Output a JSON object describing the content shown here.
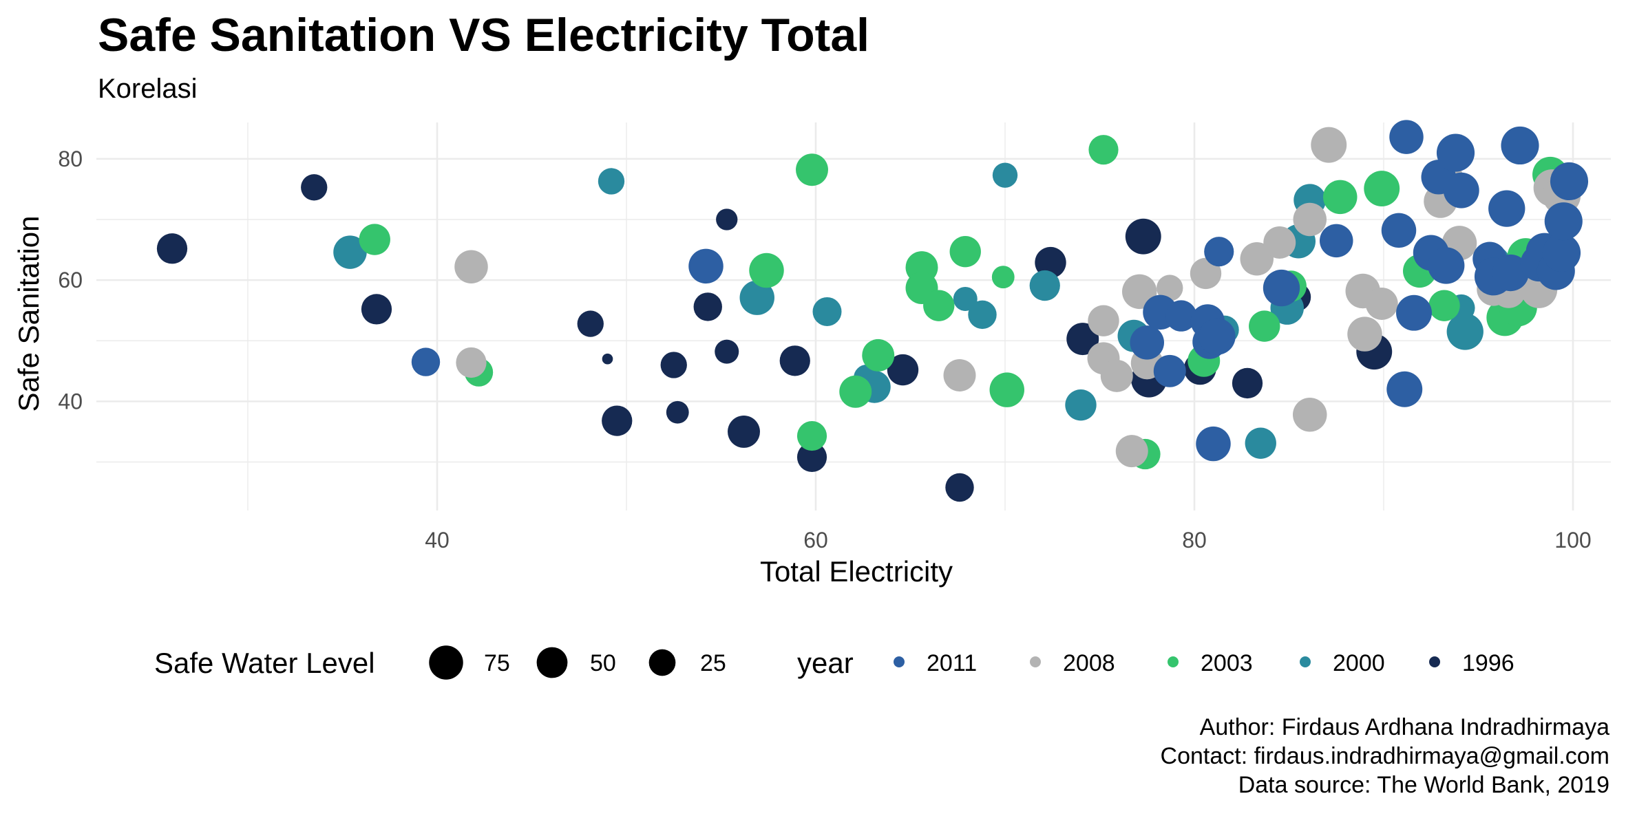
{
  "chart_data": {
    "type": "scatter",
    "title": "Safe Sanitation VS Electricity Total",
    "subtitle": "Korelasi",
    "xlabel": "Total Electricity",
    "ylabel": "Safe Sanitation",
    "xlim": [
      22,
      102
    ],
    "ylim": [
      22,
      86
    ],
    "x_ticks": [
      40,
      60,
      80,
      100
    ],
    "y_ticks": [
      40,
      60,
      80
    ],
    "grid": true,
    "legend_position": "bottom",
    "size_legend": {
      "title": "Safe Water Level",
      "values": [
        75,
        50,
        25
      ]
    },
    "color_legend": {
      "title": "year",
      "entries": [
        {
          "label": "2011",
          "color": "#2d5fa3"
        },
        {
          "label": "2008",
          "color": "#b3b3b3"
        },
        {
          "label": "2003",
          "color": "#35c46d"
        },
        {
          "label": "2000",
          "color": "#2a8a9e"
        },
        {
          "label": "1996",
          "color": "#162a52"
        }
      ]
    },
    "caption": [
      "Author: Firdaus Ardhana Indradhirmaya",
      "Contact: firdaus.indradhirmaya@gmail.com",
      "Data source: The World Bank, 2019"
    ],
    "series": [
      {
        "name": "1996",
        "color": "#162a52",
        "points": [
          {
            "x": 26,
            "y": 65.2,
            "s": 40
          },
          {
            "x": 33.5,
            "y": 75.3,
            "s": 30
          },
          {
            "x": 36.8,
            "y": 55.2,
            "s": 40
          },
          {
            "x": 48.1,
            "y": 52.8,
            "s": 30
          },
          {
            "x": 49,
            "y": 47,
            "s": 5
          },
          {
            "x": 49.5,
            "y": 36.8,
            "s": 40
          },
          {
            "x": 52.5,
            "y": 46,
            "s": 30
          },
          {
            "x": 52.7,
            "y": 38.2,
            "s": 22
          },
          {
            "x": 54.3,
            "y": 55.6,
            "s": 35
          },
          {
            "x": 55.3,
            "y": 70,
            "s": 20
          },
          {
            "x": 55.3,
            "y": 48.2,
            "s": 25
          },
          {
            "x": 56.2,
            "y": 35,
            "s": 45
          },
          {
            "x": 58.9,
            "y": 46.7,
            "s": 40
          },
          {
            "x": 59.8,
            "y": 30.8,
            "s": 38
          },
          {
            "x": 64.6,
            "y": 45.2,
            "s": 42
          },
          {
            "x": 67.6,
            "y": 25.8,
            "s": 35
          },
          {
            "x": 72.4,
            "y": 62.9,
            "s": 42
          },
          {
            "x": 74.1,
            "y": 50.3,
            "s": 45
          },
          {
            "x": 77.3,
            "y": 67.2,
            "s": 55
          },
          {
            "x": 77.6,
            "y": 43.6,
            "s": 55
          },
          {
            "x": 80.3,
            "y": 45.4,
            "s": 45
          },
          {
            "x": 82.8,
            "y": 43,
            "s": 40
          },
          {
            "x": 85.4,
            "y": 57.2,
            "s": 35
          },
          {
            "x": 89.5,
            "y": 48.2,
            "s": 55
          }
        ]
      },
      {
        "name": "2000",
        "color": "#2a8a9e",
        "points": [
          {
            "x": 35.4,
            "y": 64.6,
            "s": 48
          },
          {
            "x": 49.2,
            "y": 76.3,
            "s": 30
          },
          {
            "x": 56.9,
            "y": 57.1,
            "s": 52
          },
          {
            "x": 60.6,
            "y": 54.8,
            "s": 36
          },
          {
            "x": 62.7,
            "y": 43.9,
            "s": 30
          },
          {
            "x": 63.1,
            "y": 42.4,
            "s": 45
          },
          {
            "x": 67.9,
            "y": 56.9,
            "s": 25
          },
          {
            "x": 68.8,
            "y": 54.3,
            "s": 35
          },
          {
            "x": 70,
            "y": 77.3,
            "s": 27
          },
          {
            "x": 72.1,
            "y": 59.1,
            "s": 40
          },
          {
            "x": 74,
            "y": 39.4,
            "s": 42
          },
          {
            "x": 76.8,
            "y": 50.8,
            "s": 45
          },
          {
            "x": 81.6,
            "y": 51.8,
            "s": 35
          },
          {
            "x": 83.5,
            "y": 33.1,
            "s": 42
          },
          {
            "x": 84.9,
            "y": 55.4,
            "s": 48
          },
          {
            "x": 85.5,
            "y": 66.4,
            "s": 50
          },
          {
            "x": 86.1,
            "y": 73.2,
            "s": 45
          },
          {
            "x": 94.1,
            "y": 55.4,
            "s": 32
          },
          {
            "x": 94.3,
            "y": 51.5,
            "s": 58
          },
          {
            "x": 95.8,
            "y": 62.9,
            "s": 48
          }
        ]
      },
      {
        "name": "2003",
        "color": "#35c46d",
        "points": [
          {
            "x": 36.7,
            "y": 66.7,
            "s": 42
          },
          {
            "x": 42.2,
            "y": 44.8,
            "s": 35
          },
          {
            "x": 57.4,
            "y": 61.6,
            "s": 52
          },
          {
            "x": 59.8,
            "y": 78.2,
            "s": 45
          },
          {
            "x": 59.8,
            "y": 34.3,
            "s": 38
          },
          {
            "x": 62.1,
            "y": 41.6,
            "s": 45
          },
          {
            "x": 63.3,
            "y": 47.6,
            "s": 45
          },
          {
            "x": 65.6,
            "y": 62.1,
            "s": 45
          },
          {
            "x": 65.6,
            "y": 58.7,
            "s": 45
          },
          {
            "x": 66.5,
            "y": 55.8,
            "s": 42
          },
          {
            "x": 67.9,
            "y": 64.7,
            "s": 42
          },
          {
            "x": 69.9,
            "y": 60.5,
            "s": 22
          },
          {
            "x": 70.1,
            "y": 41.9,
            "s": 52
          },
          {
            "x": 75.2,
            "y": 81.5,
            "s": 38
          },
          {
            "x": 77.4,
            "y": 31.3,
            "s": 40
          },
          {
            "x": 80.5,
            "y": 46.7,
            "s": 45
          },
          {
            "x": 83.7,
            "y": 52.4,
            "s": 42
          },
          {
            "x": 85.1,
            "y": 59,
            "s": 42
          },
          {
            "x": 87.7,
            "y": 73.7,
            "s": 50
          },
          {
            "x": 89.9,
            "y": 75.1,
            "s": 55
          },
          {
            "x": 91.9,
            "y": 61.5,
            "s": 48
          },
          {
            "x": 93.2,
            "y": 55.8,
            "s": 42
          },
          {
            "x": 96.4,
            "y": 53.8,
            "s": 58
          },
          {
            "x": 97.1,
            "y": 55.5,
            "s": 62
          },
          {
            "x": 97.5,
            "y": 63.9,
            "s": 58
          },
          {
            "x": 98.8,
            "y": 77.4,
            "s": 55
          },
          {
            "x": 99.3,
            "y": 76.1,
            "s": 60
          }
        ]
      },
      {
        "name": "2008",
        "color": "#b3b3b3",
        "points": [
          {
            "x": 41.8,
            "y": 62.2,
            "s": 48
          },
          {
            "x": 41.8,
            "y": 46.4,
            "s": 40
          },
          {
            "x": 67.6,
            "y": 44.3,
            "s": 45
          },
          {
            "x": 75.2,
            "y": 53.3,
            "s": 42
          },
          {
            "x": 75.2,
            "y": 47.1,
            "s": 45
          },
          {
            "x": 75.9,
            "y": 44.2,
            "s": 45
          },
          {
            "x": 76.7,
            "y": 31.8,
            "s": 45
          },
          {
            "x": 77.1,
            "y": 58.1,
            "s": 52
          },
          {
            "x": 77.5,
            "y": 46.3,
            "s": 45
          },
          {
            "x": 78.7,
            "y": 58.7,
            "s": 30
          },
          {
            "x": 80.6,
            "y": 61.1,
            "s": 42
          },
          {
            "x": 83.3,
            "y": 63.5,
            "s": 48
          },
          {
            "x": 84.5,
            "y": 66.2,
            "s": 45
          },
          {
            "x": 86.1,
            "y": 70,
            "s": 48
          },
          {
            "x": 86.1,
            "y": 37.8,
            "s": 50
          },
          {
            "x": 87.1,
            "y": 82.3,
            "s": 55
          },
          {
            "x": 88.9,
            "y": 58.2,
            "s": 52
          },
          {
            "x": 89,
            "y": 51.1,
            "s": 52
          },
          {
            "x": 89.9,
            "y": 56.1,
            "s": 45
          },
          {
            "x": 93,
            "y": 73,
            "s": 48
          },
          {
            "x": 93.3,
            "y": 76.8,
            "s": 50
          },
          {
            "x": 94,
            "y": 66.1,
            "s": 52
          },
          {
            "x": 95.8,
            "y": 58.5,
            "s": 48
          },
          {
            "x": 96.6,
            "y": 58.2,
            "s": 50
          },
          {
            "x": 98.2,
            "y": 58.4,
            "s": 58
          },
          {
            "x": 98.9,
            "y": 75.2,
            "s": 60
          },
          {
            "x": 99.4,
            "y": 73.9,
            "s": 62
          }
        ]
      },
      {
        "name": "2011",
        "color": "#2d5fa3",
        "points": [
          {
            "x": 39.4,
            "y": 46.5,
            "s": 35
          },
          {
            "x": 54.2,
            "y": 62.3,
            "s": 52
          },
          {
            "x": 77.5,
            "y": 49.7,
            "s": 50
          },
          {
            "x": 78.2,
            "y": 54.7,
            "s": 52
          },
          {
            "x": 78.7,
            "y": 45,
            "s": 45
          },
          {
            "x": 79.3,
            "y": 54.1,
            "s": 42
          },
          {
            "x": 80.7,
            "y": 53.2,
            "s": 50
          },
          {
            "x": 80.8,
            "y": 49.8,
            "s": 50
          },
          {
            "x": 81,
            "y": 33,
            "s": 52
          },
          {
            "x": 81.2,
            "y": 50.7,
            "s": 58
          },
          {
            "x": 81.3,
            "y": 64.7,
            "s": 38
          },
          {
            "x": 84.6,
            "y": 58.7,
            "s": 58
          },
          {
            "x": 87.5,
            "y": 66.5,
            "s": 48
          },
          {
            "x": 90.8,
            "y": 68.2,
            "s": 52
          },
          {
            "x": 91.1,
            "y": 42,
            "s": 55
          },
          {
            "x": 91.2,
            "y": 83.6,
            "s": 50
          },
          {
            "x": 91.6,
            "y": 54.6,
            "s": 55
          },
          {
            "x": 92.5,
            "y": 64.5,
            "s": 55
          },
          {
            "x": 92.9,
            "y": 77,
            "s": 52
          },
          {
            "x": 93.3,
            "y": 62.4,
            "s": 58
          },
          {
            "x": 93.8,
            "y": 81,
            "s": 62
          },
          {
            "x": 94.1,
            "y": 74.8,
            "s": 55
          },
          {
            "x": 95.6,
            "y": 63.5,
            "s": 50
          },
          {
            "x": 95.8,
            "y": 60.6,
            "s": 62
          },
          {
            "x": 96.5,
            "y": 71.8,
            "s": 58
          },
          {
            "x": 96.7,
            "y": 61.2,
            "s": 58
          },
          {
            "x": 97.2,
            "y": 82.2,
            "s": 62
          },
          {
            "x": 98.2,
            "y": 62.8,
            "s": 58
          },
          {
            "x": 98.5,
            "y": 64.7,
            "s": 60
          },
          {
            "x": 99.1,
            "y": 61.5,
            "s": 62
          },
          {
            "x": 99.4,
            "y": 64.5,
            "s": 62
          },
          {
            "x": 99.5,
            "y": 69.7,
            "s": 62
          },
          {
            "x": 99.8,
            "y": 76.3,
            "s": 62
          }
        ]
      }
    ]
  }
}
